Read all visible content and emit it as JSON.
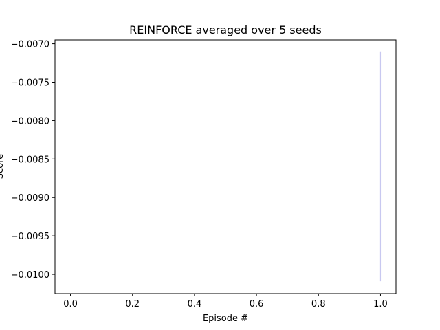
{
  "chart_data": {
    "type": "line",
    "title": "REINFORCE averaged over 5 seeds",
    "xlabel": "Episode #",
    "ylabel": "Score",
    "xlim": [
      -0.05,
      1.05
    ],
    "ylim": [
      -0.01025,
      -0.00695
    ],
    "xticks": [
      0.0,
      0.2,
      0.4,
      0.6,
      0.8,
      1.0
    ],
    "xtick_labels": [
      "0.0",
      "0.2",
      "0.4",
      "0.6",
      "0.8",
      "1.0"
    ],
    "yticks": [
      -0.007,
      -0.0075,
      -0.008,
      -0.0085,
      -0.009,
      -0.0095,
      -0.01
    ],
    "ytick_labels": [
      "−0.0070",
      "−0.0075",
      "−0.0080",
      "−0.0085",
      "−0.0090",
      "−0.0095",
      "−0.0100"
    ],
    "grid": false,
    "series": [
      {
        "x": [
          1.0,
          1.0
        ],
        "y": [
          -0.0071,
          -0.01009
        ],
        "color": "#c8c8f0"
      }
    ]
  }
}
